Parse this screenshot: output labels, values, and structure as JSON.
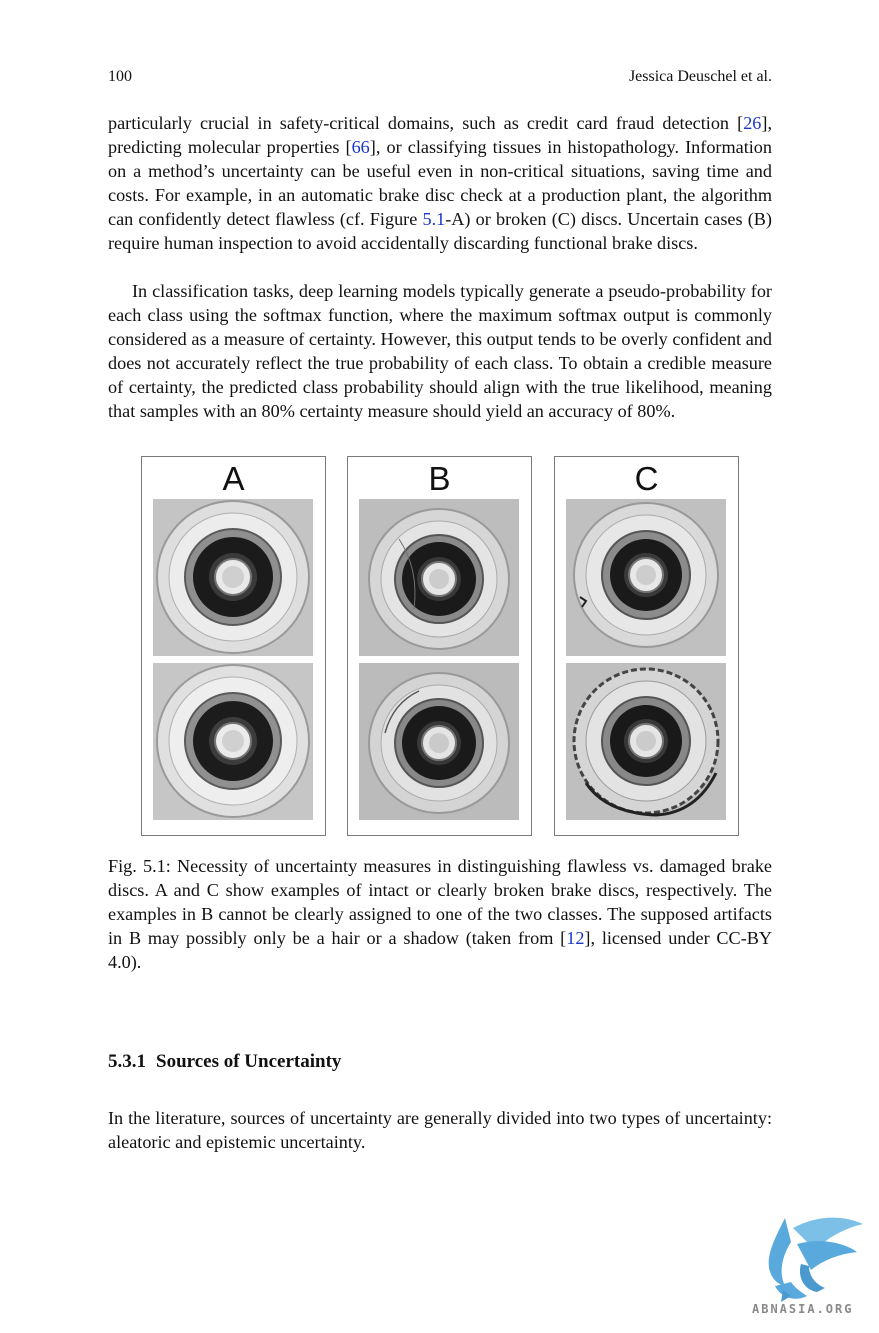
{
  "header": {
    "page_number": "100",
    "running_head": "Jessica Deuschel et al."
  },
  "paragraph1": {
    "t1": "particularly crucial in safety-critical domains, such as credit card fraud detection [",
    "ref1": "26",
    "t2": "], predicting molecular properties [",
    "ref2": "66",
    "t3": "], or classifying tissues in histopathology. Information on a method’s uncertainty can be useful even in non-critical situations, saving time and costs. For example, in an automatic brake disc check at a production plant, the algorithm can confidently detect flawless (cf. Figure ",
    "ref3": "5.1",
    "t4": "-A) or broken (C) discs. Uncertain cases (B) require human inspection to avoid accidentally discarding functional brake discs."
  },
  "paragraph2": "In classification tasks, deep learning models typically generate a pseudo-probability for each class using the softmax function, where the maximum softmax output is commonly considered as a measure of certainty. However, this output tends to be overly confident and does not accurately reflect the true probability of each class. To obtain a credible measure of certainty, the predicted class probability should align with the true likelihood, meaning that samples with an 80% certainty measure should yield an accuracy of 80%.",
  "figure": {
    "panels": [
      "A",
      "B",
      "C"
    ]
  },
  "caption": {
    "t1": "Fig. 5.1: Necessity of uncertainty measures in distinguishing flawless vs. damaged brake discs. A and C show examples of intact or clearly broken brake discs, respectively. The examples in B cannot be clearly assigned to one of the two classes. The supposed artifacts in B may possibly only be a hair or a shadow (taken from [",
    "ref": "12",
    "t2": "], licensed under CC-BY 4.0)."
  },
  "section": {
    "number": "5.3.1",
    "title": "Sources of Uncertainty"
  },
  "paragraph3": "In the literature, sources of uncertainty are generally divided into two types of uncertainty: aleatoric and epistemic uncertainty.",
  "watermark": {
    "text": "ABNASIA.ORG"
  },
  "colors": {
    "link": "#1a36c9",
    "watermark": "#5aa9dc"
  }
}
